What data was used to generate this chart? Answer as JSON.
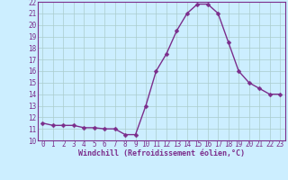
{
  "x": [
    0,
    1,
    2,
    3,
    4,
    5,
    6,
    7,
    8,
    9,
    10,
    11,
    12,
    13,
    14,
    15,
    16,
    17,
    18,
    19,
    20,
    21,
    22,
    23
  ],
  "y": [
    11.5,
    11.3,
    11.3,
    11.3,
    11.1,
    11.1,
    11.0,
    11.0,
    10.5,
    10.5,
    13.0,
    16.0,
    17.5,
    19.5,
    21.0,
    21.8,
    21.8,
    21.0,
    18.5,
    16.0,
    15.0,
    14.5,
    14.0,
    14.0
  ],
  "line_color": "#7b2d8b",
  "marker_color": "#7b2d8b",
  "bg_color": "#cceeff",
  "grid_color": "#aacccc",
  "axis_color": "#7b2d8b",
  "tick_color": "#7b2d8b",
  "xlabel": "Windchill (Refroidissement éolien,°C)",
  "ylim": [
    10,
    22
  ],
  "xlim": [
    -0.5,
    23.5
  ],
  "yticks": [
    10,
    11,
    12,
    13,
    14,
    15,
    16,
    17,
    18,
    19,
    20,
    21,
    22
  ],
  "xticks": [
    0,
    1,
    2,
    3,
    4,
    5,
    6,
    7,
    8,
    9,
    10,
    11,
    12,
    13,
    14,
    15,
    16,
    17,
    18,
    19,
    20,
    21,
    22,
    23
  ],
  "xlabel_fontsize": 6.0,
  "tick_fontsize": 5.5,
  "marker_size": 2.5,
  "line_width": 1.0
}
